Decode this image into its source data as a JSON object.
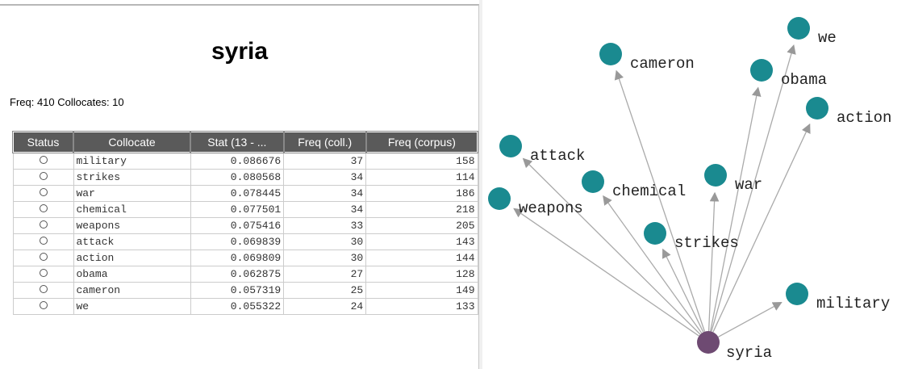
{
  "title": "syria",
  "info": "Freq: 410 Collocates: 10",
  "table": {
    "headers": [
      "Status",
      "Collocate",
      "Stat (13 - ...",
      "Freq (coll.)",
      "Freq (corpus)"
    ],
    "rows": [
      [
        "military",
        "0.086676",
        "37",
        "158"
      ],
      [
        "strikes",
        "0.080568",
        "34",
        "114"
      ],
      [
        "war",
        "0.078445",
        "34",
        "186"
      ],
      [
        "chemical",
        "0.077501",
        "34",
        "218"
      ],
      [
        "weapons",
        "0.075416",
        "33",
        "205"
      ],
      [
        "attack",
        "0.069839",
        "30",
        "143"
      ],
      [
        "action",
        "0.069809",
        "30",
        "144"
      ],
      [
        "obama",
        "0.062875",
        "27",
        "128"
      ],
      [
        "cameron",
        "0.057319",
        "25",
        "149"
      ],
      [
        "we",
        "0.055322",
        "24",
        "133"
      ]
    ]
  },
  "graph": {
    "center": "syria",
    "nodes": [
      "military",
      "strikes",
      "war",
      "chemical",
      "weapons",
      "attack",
      "action",
      "obama",
      "cameron",
      "we"
    ]
  }
}
